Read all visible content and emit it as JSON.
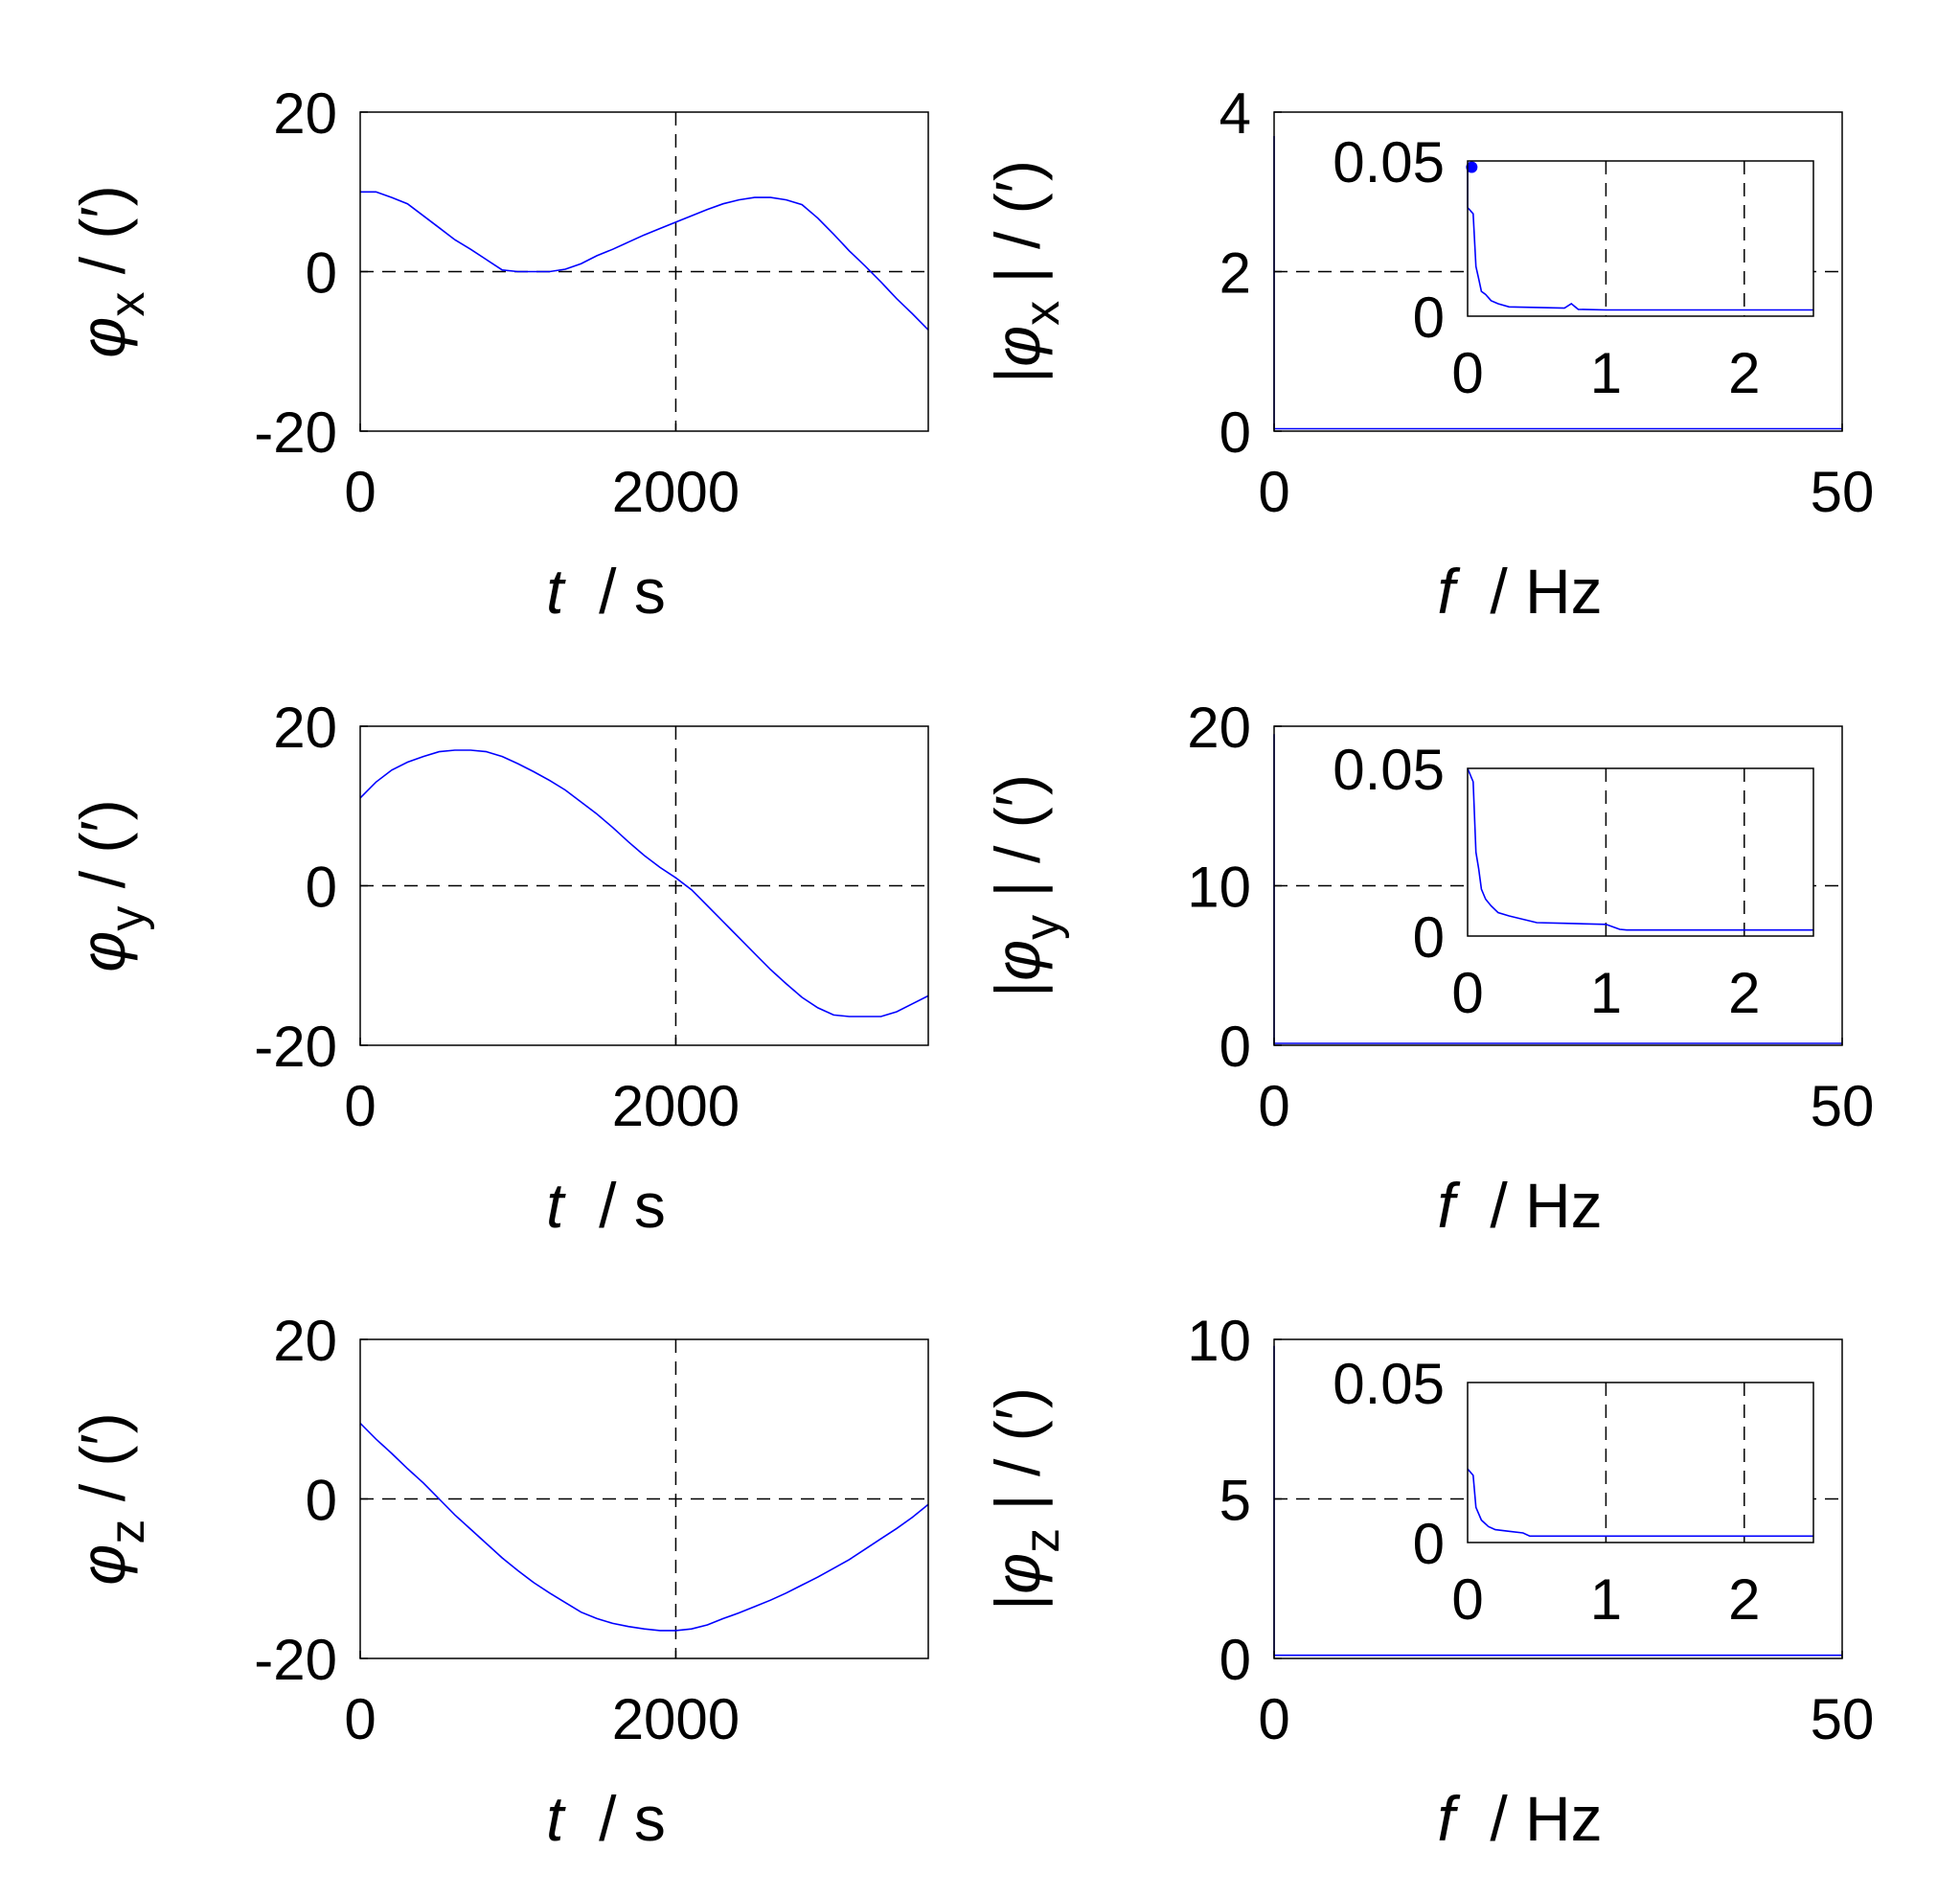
{
  "chart_data": [
    {
      "type": "line",
      "xlabel": "t  / s",
      "ylabel": "φx / (′)",
      "subscript": "x",
      "xlim": [
        0,
        3600
      ],
      "ylim": [
        -20,
        20
      ],
      "xticks": [
        0,
        2000
      ],
      "yticks": [
        -20,
        0,
        20
      ],
      "reference_lines": {
        "x": 2000,
        "y": 0
      },
      "color": "#0000ff",
      "series": [
        {
          "x": [
            0,
            100,
            200,
            300,
            400,
            500,
            600,
            700,
            800,
            900,
            1000,
            1100,
            1200,
            1300,
            1400,
            1500,
            1600,
            1700,
            1800,
            1900,
            2000,
            2100,
            2200,
            2300,
            2400,
            2500,
            2600,
            2700,
            2800,
            2900,
            3000,
            3100,
            3200,
            3300,
            3400,
            3500,
            3600
          ],
          "y": [
            10,
            10,
            9.3,
            8.5,
            7.0,
            5.5,
            4.0,
            2.8,
            1.5,
            0.2,
            0,
            0,
            0,
            0.3,
            1.0,
            2.0,
            2.8,
            3.7,
            4.6,
            5.4,
            6.2,
            7.0,
            7.8,
            8.5,
            9.0,
            9.3,
            9.3,
            9.0,
            8.4,
            6.7,
            4.7,
            2.6,
            0.7,
            -1.3,
            -3.4,
            -5.3,
            -7.3
          ]
        }
      ]
    },
    {
      "type": "line",
      "xlabel": "f  / Hz",
      "ylabel": "|φx | / (′)",
      "subscript": "x",
      "xlim": [
        0,
        50
      ],
      "ylim": [
        0,
        4
      ],
      "xticks": [
        0,
        50
      ],
      "yticks": [
        0,
        2,
        4
      ],
      "reference_lines": {
        "y": 2
      },
      "color": "#0000ff",
      "series": [
        {
          "x": [
            0,
            0,
            50
          ],
          "y": [
            3.7,
            0.03,
            0.03
          ]
        }
      ],
      "inset": {
        "xlim": [
          0,
          2.5
        ],
        "ylim": [
          0,
          0.05
        ],
        "xticks": [
          0,
          1,
          2
        ],
        "yticks": [
          0,
          0.05
        ],
        "reference_lines_x": [
          1,
          2
        ],
        "marker": {
          "x": 0.03,
          "y": 0.048
        },
        "x": [
          0,
          0,
          0.04,
          0.06,
          0.08,
          0.1,
          0.13,
          0.17,
          0.22,
          0.3,
          0.5,
          0.7,
          0.75,
          0.8,
          1.0,
          2.5
        ],
        "y": [
          0.048,
          0.035,
          0.033,
          0.016,
          0.012,
          0.008,
          0.007,
          0.005,
          0.004,
          0.003,
          0.0028,
          0.0026,
          0.004,
          0.0022,
          0.002,
          0.002
        ]
      }
    },
    {
      "type": "line",
      "xlabel": "t  / s",
      "ylabel": "φy / (′)",
      "subscript": "y",
      "xlim": [
        0,
        3600
      ],
      "ylim": [
        -20,
        20
      ],
      "xticks": [
        0,
        2000
      ],
      "yticks": [
        -20,
        0,
        20
      ],
      "reference_lines": {
        "x": 2000,
        "y": 0
      },
      "color": "#0000ff",
      "series": [
        {
          "x": [
            0,
            100,
            200,
            300,
            400,
            500,
            600,
            700,
            800,
            900,
            1000,
            1100,
            1200,
            1300,
            1400,
            1500,
            1600,
            1700,
            1800,
            1900,
            2000,
            2100,
            2200,
            2300,
            2400,
            2500,
            2600,
            2700,
            2800,
            2900,
            3000,
            3100,
            3200,
            3300,
            3400,
            3500,
            3600
          ],
          "y": [
            11,
            13,
            14.5,
            15.5,
            16.2,
            16.8,
            17,
            17,
            16.8,
            16.2,
            15.3,
            14.3,
            13.2,
            12,
            10.5,
            9.0,
            7.3,
            5.5,
            3.8,
            2.3,
            1.0,
            -0.5,
            -2.5,
            -4.5,
            -6.5,
            -8.5,
            -10.5,
            -12.3,
            -14.0,
            -15.3,
            -16.2,
            -16.4,
            -16.4,
            -16.4,
            -15.8,
            -14.8,
            -13.8
          ]
        }
      ]
    },
    {
      "type": "line",
      "xlabel": "f  / Hz",
      "ylabel": "|φy | / (′)",
      "subscript": "y",
      "xlim": [
        0,
        50
      ],
      "ylim": [
        0,
        20
      ],
      "xticks": [
        0,
        50
      ],
      "yticks": [
        0,
        10,
        20
      ],
      "reference_lines": {
        "y": 10
      },
      "color": "#0000ff",
      "series": [
        {
          "x": [
            0,
            0,
            50
          ],
          "y": [
            19.5,
            0.12,
            0.12
          ]
        }
      ],
      "inset": {
        "xlim": [
          0,
          2.5
        ],
        "ylim": [
          0,
          0.05
        ],
        "xticks": [
          0,
          1,
          2
        ],
        "yticks": [
          0,
          0.05
        ],
        "reference_lines_x": [
          1,
          2
        ],
        "x": [
          0,
          0,
          0.04,
          0.06,
          0.08,
          0.1,
          0.13,
          0.17,
          0.22,
          0.3,
          0.5,
          0.7,
          1.0,
          1.1,
          1.15,
          2.5
        ],
        "y": [
          0.05,
          0.05,
          0.046,
          0.025,
          0.02,
          0.014,
          0.011,
          0.009,
          0.007,
          0.006,
          0.004,
          0.0038,
          0.0035,
          0.002,
          0.0018,
          0.0018
        ]
      }
    },
    {
      "type": "line",
      "xlabel": "t  / s",
      "ylabel": "φz / (′)",
      "subscript": "z",
      "xlim": [
        0,
        3600
      ],
      "ylim": [
        -20,
        20
      ],
      "xticks": [
        0,
        2000
      ],
      "yticks": [
        -20,
        0,
        20
      ],
      "reference_lines": {
        "x": 2000,
        "y": 0
      },
      "color": "#0000ff",
      "series": [
        {
          "x": [
            0,
            100,
            200,
            300,
            400,
            500,
            600,
            700,
            800,
            900,
            1000,
            1100,
            1200,
            1300,
            1400,
            1500,
            1600,
            1700,
            1800,
            1900,
            2000,
            2100,
            2200,
            2300,
            2400,
            2500,
            2600,
            2700,
            2800,
            2900,
            3000,
            3100,
            3200,
            3300,
            3400,
            3500,
            3600
          ],
          "y": [
            9.5,
            7.5,
            5.7,
            3.8,
            2.0,
            0,
            -2.0,
            -3.8,
            -5.6,
            -7.4,
            -9.0,
            -10.5,
            -11.8,
            -13.0,
            -14.2,
            -15.0,
            -15.6,
            -16.0,
            -16.3,
            -16.5,
            -16.5,
            -16.3,
            -15.8,
            -15.0,
            -14.3,
            -13.5,
            -12.7,
            -11.8,
            -10.8,
            -9.8,
            -8.7,
            -7.6,
            -6.3,
            -5.0,
            -3.7,
            -2.3,
            -0.7
          ]
        }
      ]
    },
    {
      "type": "line",
      "xlabel": "f  / Hz",
      "ylabel": "|φz | / (′)",
      "subscript": "z",
      "xlim": [
        0,
        50
      ],
      "ylim": [
        0,
        10
      ],
      "xticks": [
        0,
        50
      ],
      "yticks": [
        0,
        5,
        10
      ],
      "reference_lines": {
        "y": 5
      },
      "color": "#0000ff",
      "series": [
        {
          "x": [
            0,
            0,
            50
          ],
          "y": [
            9.8,
            0.1,
            0.1
          ]
        }
      ],
      "inset": {
        "xlim": [
          0,
          2.5
        ],
        "ylim": [
          0,
          0.05
        ],
        "xticks": [
          0,
          1,
          2
        ],
        "yticks": [
          0,
          0.05
        ],
        "reference_lines_x": [
          1,
          2
        ],
        "x": [
          0,
          0,
          0.04,
          0.06,
          0.1,
          0.15,
          0.2,
          0.3,
          0.4,
          0.45,
          2.5
        ],
        "y": [
          0.023,
          0.023,
          0.021,
          0.011,
          0.007,
          0.005,
          0.004,
          0.0035,
          0.003,
          0.002,
          0.002
        ]
      }
    }
  ]
}
